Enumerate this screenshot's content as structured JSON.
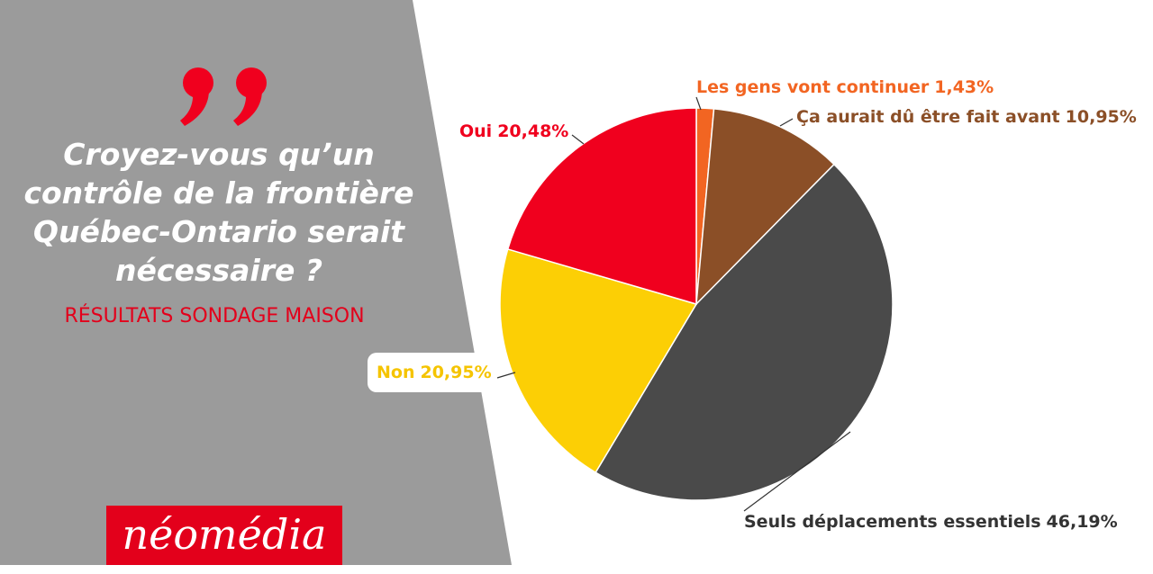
{
  "chart_data": {
    "type": "pie",
    "title": [
      "Croyez-vous qu’un",
      "contrôle de la frontière",
      "Québec-Ontario serait",
      "nécessaire ?"
    ],
    "subtitle": "RÉSULTATS SONDAGE MAISON",
    "logo": "néomédia",
    "categories": [
      "Les gens vont continuer",
      "Ça aurait dû être fait avant",
      "Seuls déplacements essentiels",
      "Non",
      "Oui"
    ],
    "values": [
      1.43,
      10.95,
      46.19,
      20.95,
      20.48
    ],
    "value_labels": [
      "1,43%",
      "10,95%",
      "46,19%",
      "20,95%",
      "20,48%"
    ],
    "colors": [
      "#f26522",
      "#8b4f27",
      "#4a4a4a",
      "#fccf05",
      "#f0001e"
    ]
  }
}
